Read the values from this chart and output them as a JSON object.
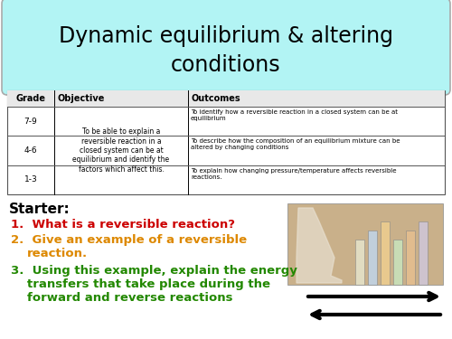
{
  "title_line1": "Dynamic equilibrium & altering",
  "title_line2": "conditions",
  "title_bg": "#b2f4f4",
  "title_fontsize": 17,
  "table_header": [
    "Grade",
    "Objective",
    "Outcomes"
  ],
  "table_grades": [
    "7-9",
    "4-6",
    "1-3"
  ],
  "table_objective": "To be able to explain a\nreversible reaction in a\nclosed system can be at\nequilibrium and identify the\nfactors which affect this.",
  "table_outcomes": [
    "To identify how a reversible reaction in a closed system can be at\nequilibrium",
    "To describe how the composition of an equilibrium mixture can be\naltered by changing conditions",
    "To explain how changing pressure/temperature affects reversible\nreactions."
  ],
  "starter_label": "Starter:",
  "q1": "What is a reversible reaction?",
  "q1_color": "#cc0000",
  "q2_line1": "Give an example of a reversible",
  "q2_line2": "reaction.",
  "q2_color": "#dd8800",
  "q3_line1": "Using this example, explain the energy",
  "q3_line2": "transfers that take place during the",
  "q3_line3": "forward and reverse reactions",
  "q3_color": "#228800",
  "bg_color": "#ffffff"
}
